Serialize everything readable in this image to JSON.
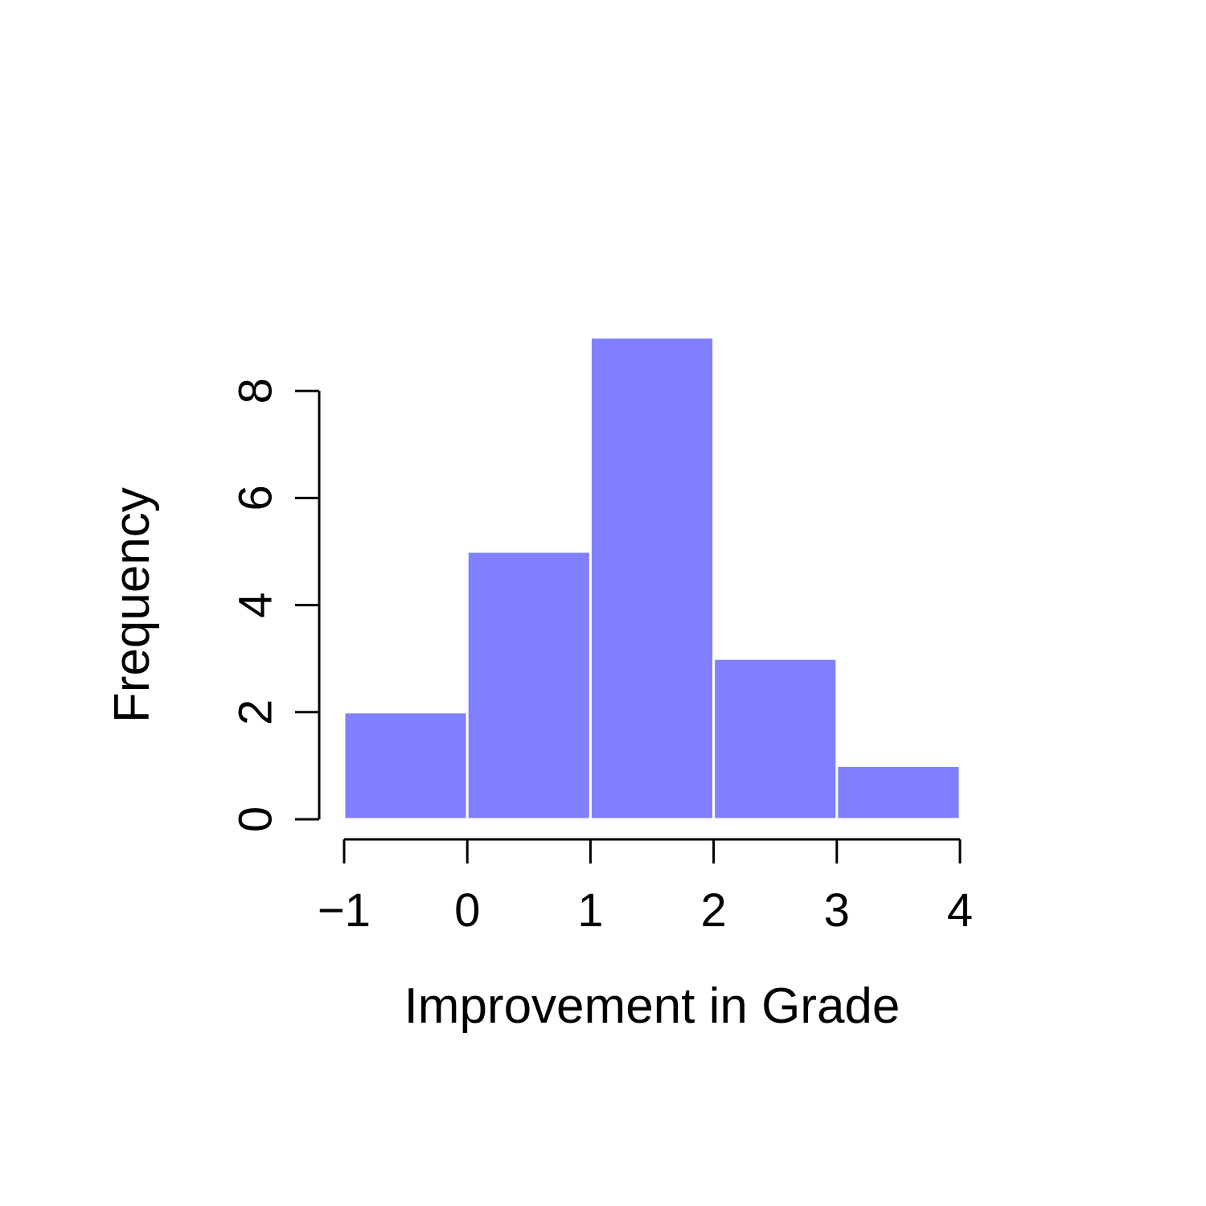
{
  "chart_data": {
    "type": "bar",
    "title": "",
    "xlabel": "Improvement in Grade",
    "ylabel": "Frequency",
    "bins": [
      {
        "from": -1,
        "to": 0,
        "count": 2
      },
      {
        "from": 0,
        "to": 1,
        "count": 5
      },
      {
        "from": 1,
        "to": 2,
        "count": 9
      },
      {
        "from": 2,
        "to": 3,
        "count": 3
      },
      {
        "from": 3,
        "to": 4,
        "count": 1
      }
    ],
    "x_ticks": [
      {
        "value": -1,
        "label": "−1"
      },
      {
        "value": 0,
        "label": "0"
      },
      {
        "value": 1,
        "label": "1"
      },
      {
        "value": 2,
        "label": "2"
      },
      {
        "value": 3,
        "label": "3"
      },
      {
        "value": 4,
        "label": "4"
      }
    ],
    "y_ticks": [
      {
        "value": 0,
        "label": "0"
      },
      {
        "value": 2,
        "label": "2"
      },
      {
        "value": 4,
        "label": "4"
      },
      {
        "value": 6,
        "label": "6"
      },
      {
        "value": 8,
        "label": "8"
      }
    ],
    "xlim": [
      -1,
      4
    ],
    "ylim": [
      0,
      8
    ],
    "grid": false,
    "bar_color": "#8080ff"
  }
}
